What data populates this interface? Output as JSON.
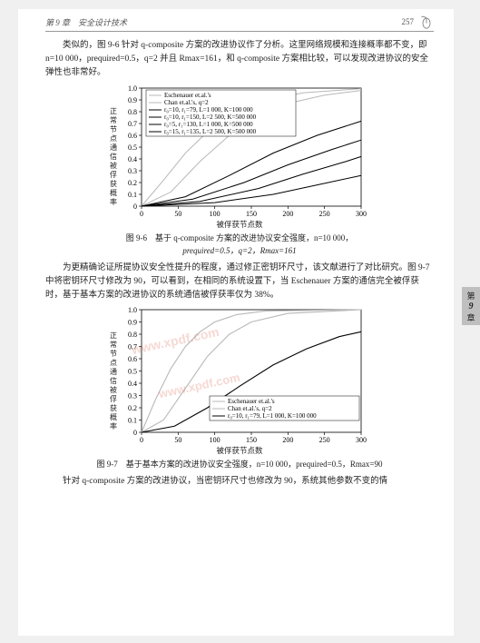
{
  "header": {
    "left": "第 9 章　安全设计技术",
    "pageno": "257"
  },
  "para1": "类似的，图 9-6 针对 q-composite 方案的改进协议作了分析。这里网络规模和连接概率都不变，即 n=10 000，prequired=0.5，q=2 并且 Rmax=161，和 q-composite 方案相比较，可以发现改进协议的安全弹性也非常好。",
  "chart1": {
    "ylabel": "正常节点通信被俘获概率",
    "xlabel": "被俘获节点数",
    "xticks": [
      "0",
      "50",
      "100",
      "150",
      "200",
      "250",
      "300"
    ],
    "yticks": [
      "0",
      "0.1",
      "0.2",
      "0.3",
      "0.4",
      "0.5",
      "0.6",
      "0.7",
      "0.8",
      "0.9",
      "1.0"
    ],
    "legend": [
      "Eschenauer et.al.'s",
      "Chan et.al.'s, q=2",
      "r₀=10, r₁=79, L=1 000, K=100 000",
      "r₀=10, r₁=150, L=2 500, K=500 000",
      "r₀=5, r₁=130, L=1 000, K=500 000",
      "r₀=15, r₁=135, L=2 500, K=500 000"
    ],
    "colors": {
      "black": "#000000",
      "grey": "#b8b8b8",
      "bg": "#ffffff",
      "axis": "#000000"
    }
  },
  "caption1_a": "图 9-6　基于 q-composite 方案的改进协议安全强度，n=10 000，",
  "caption1_b": "prequired=0.5，q=2，Rmax=161",
  "para2": "为更精确论证所提协议安全性提升的程度，通过修正密钥环尺寸，该文献进行了对比研究。图 9-7 中将密钥环尺寸修改为 90，可以看到，在相同的系统设置下，当 Eschenauer 方案的通信完全被俘获时，基于基本方案的改进协议的系统通信被俘获率仅为 38%。",
  "chart2": {
    "ylabel": "正常节点通信被俘获概率",
    "xlabel": "被俘获节点数",
    "xticks": [
      "0",
      "50",
      "100",
      "150",
      "200",
      "250",
      "300"
    ],
    "yticks": [
      "0",
      "0.1",
      "0.2",
      "0.3",
      "0.4",
      "0.5",
      "0.6",
      "0.7",
      "0.8",
      "0.9",
      "1.0"
    ],
    "legend": [
      "Eschenauer et.al.'s",
      "Chan et.al.'s, q=2",
      "r₀=10, r₁=79, L=1 000, K=100 000"
    ],
    "series": {
      "esch": {
        "color": "#b8b8b8",
        "pts": [
          [
            0,
            0
          ],
          [
            20,
            0.28
          ],
          [
            40,
            0.52
          ],
          [
            60,
            0.7
          ],
          [
            80,
            0.82
          ],
          [
            100,
            0.9
          ],
          [
            130,
            0.96
          ],
          [
            170,
            0.99
          ],
          [
            300,
            1.0
          ]
        ]
      },
      "chan": {
        "color": "#b8b8b8",
        "pts": [
          [
            0,
            0
          ],
          [
            30,
            0.1
          ],
          [
            60,
            0.36
          ],
          [
            90,
            0.62
          ],
          [
            120,
            0.8
          ],
          [
            150,
            0.9
          ],
          [
            200,
            0.97
          ],
          [
            300,
            1.0
          ]
        ]
      },
      "improved": {
        "color": "#000000",
        "pts": [
          [
            0,
            0
          ],
          [
            45,
            0.05
          ],
          [
            90,
            0.2
          ],
          [
            135,
            0.38
          ],
          [
            180,
            0.55
          ],
          [
            225,
            0.68
          ],
          [
            270,
            0.78
          ],
          [
            300,
            0.82
          ]
        ]
      }
    }
  },
  "caption2": "图 9-7　基于基本方案的改进协议安全强度，n=10 000，prequired=0.5，Rmax=90",
  "para3": "针对 q-composite 方案的改进协议，当密钥环尺寸也修改为 90，系统其他参数不变的情",
  "sideTab": {
    "top": "第",
    "num": "9",
    "bot": "章"
  },
  "watermark": "www.xpdf.com"
}
